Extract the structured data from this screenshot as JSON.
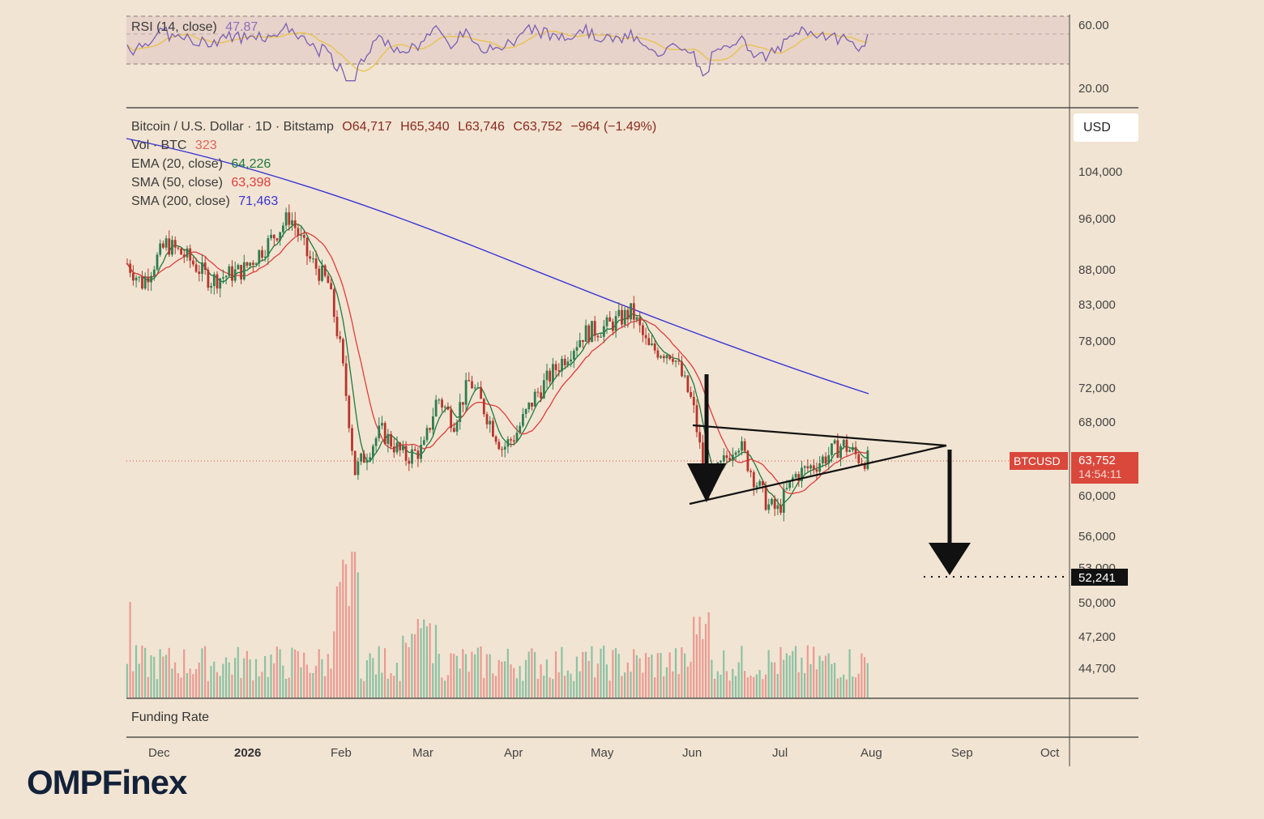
{
  "brand": {
    "logo_text": "OMPFinex"
  },
  "rsi_panel": {
    "label": "RSI (14, close)",
    "value": "47.87",
    "value_color": "#8b6fbf",
    "ticks": [
      "60.00",
      "20.00"
    ]
  },
  "header": {
    "symbol": "Bitcoin / U.S. Dollar · 1D · Bitstamp",
    "open": "O64,717",
    "high": "H65,340",
    "low": "L63,746",
    "close": "C63,752",
    "change": "−964 (−1.49%)",
    "ohlc_color": "#8b2a1f"
  },
  "indicators": [
    {
      "label": "Vol · BTC",
      "value": "323",
      "color": "#e0645a"
    },
    {
      "label": "EMA (20, close)",
      "value": "64,226",
      "color": "#1f7a3c"
    },
    {
      "label": "SMA (50, close)",
      "value": "63,398",
      "color": "#e03d3d"
    },
    {
      "label": "SMA (200, close)",
      "value": "71,463",
      "color": "#3a33d6"
    }
  ],
  "currency_button": "USD",
  "price_axis": {
    "ticks": [
      "104,000",
      "96,000",
      "88,000",
      "83,000",
      "78,000",
      "72,000",
      "68,000",
      "60,000",
      "56,000",
      "53,000",
      "50,000",
      "47,200",
      "44,700"
    ]
  },
  "current_price": {
    "symbol_tag": "BTCUSD",
    "price": "63,752",
    "countdown": "14:54:11",
    "tag_color": "#d9483b"
  },
  "target": {
    "label": "52,241"
  },
  "time_axis": {
    "labels": [
      "Dec",
      "2026",
      "Feb",
      "Mar",
      "Apr",
      "May",
      "Jun",
      "Jul",
      "Aug",
      "Sep",
      "Oct"
    ]
  },
  "funding_panel": {
    "label": "Funding Rate"
  },
  "chart_data": {
    "type": "candlestick",
    "title": "Bitcoin / U.S. Dollar · 1D · Bitstamp",
    "x_labels": [
      "Dec",
      "2026",
      "Feb",
      "Mar",
      "Apr",
      "May",
      "Jun",
      "Jul",
      "Aug",
      "Sep",
      "Oct"
    ],
    "price_anchors": [
      {
        "x": "Dec",
        "y": 89000
      },
      {
        "x": "2026",
        "y": 88000
      },
      {
        "x": "Jan mid",
        "y": 96500
      },
      {
        "x": "Feb",
        "y": 62500
      },
      {
        "x": "Mar",
        "y": 65000
      },
      {
        "x": "Apr",
        "y": 66500
      },
      {
        "x": "May",
        "y": 82000
      },
      {
        "x": "Jun",
        "y": 61000
      },
      {
        "x": "Jul",
        "y": 58500
      },
      {
        "x": "Aug",
        "y": 63752
      }
    ],
    "series": [
      {
        "name": "EMA (20, close)",
        "last": 64226
      },
      {
        "name": "SMA (50, close)",
        "last": 63398
      },
      {
        "name": "SMA (200, close)",
        "last": 71463
      },
      {
        "name": "Vol · BTC",
        "last": 323
      }
    ],
    "annotations": [
      {
        "type": "symmetrical-triangle",
        "upper": [
          68000,
          64500
        ],
        "lower": [
          59500,
          64500
        ]
      },
      {
        "type": "target",
        "value": 52241
      }
    ],
    "rsi": {
      "name": "RSI (14, close)",
      "last": 47.87,
      "levels": [
        70,
        30
      ]
    }
  }
}
